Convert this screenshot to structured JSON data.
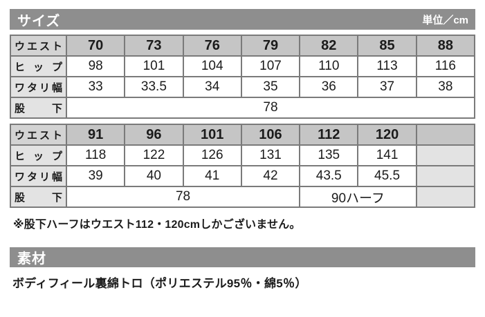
{
  "size_section": {
    "title": "サイズ",
    "unit_label": "単位／cm",
    "table1": {
      "rows": [
        {
          "label": "ウエスト",
          "values": [
            "70",
            "73",
            "76",
            "79",
            "82",
            "85",
            "88"
          ]
        },
        {
          "label": "ヒップ",
          "values": [
            "98",
            "101",
            "104",
            "107",
            "110",
            "113",
            "116"
          ]
        },
        {
          "label": "ワタリ幅",
          "values": [
            "33",
            "33.5",
            "34",
            "35",
            "36",
            "37",
            "38"
          ]
        },
        {
          "label": "股　下",
          "merged_value": "78"
        }
      ]
    },
    "table2": {
      "rows": [
        {
          "label": "ウエスト",
          "values": [
            "91",
            "96",
            "101",
            "106",
            "112",
            "120",
            ""
          ]
        },
        {
          "label": "ヒップ",
          "values": [
            "118",
            "122",
            "126",
            "131",
            "135",
            "141",
            ""
          ]
        },
        {
          "label": "ワタリ幅",
          "values": [
            "39",
            "40",
            "41",
            "42",
            "43.5",
            "45.5",
            ""
          ]
        },
        {
          "label": "股　下",
          "inseam_left": "78",
          "inseam_right": "90ハーフ",
          "empty": ""
        }
      ]
    },
    "note": "※股下ハーフはウエスト112・120cmしかございません。"
  },
  "material_section": {
    "title": "素材",
    "description": "ボディフィール裏綿トロ（ポリエステル95％・綿5％）"
  },
  "colors": {
    "section_bar_gray": "#8e8e8e",
    "header_row_gray": "#c5c5c5",
    "header_label_gray": "#d3d3d3",
    "label_cell_gray": "#e3e3e3",
    "table_border_gray": "#7a7a7a",
    "text_black": "#1b1b1b",
    "bar_text_white": "#ffffff"
  }
}
